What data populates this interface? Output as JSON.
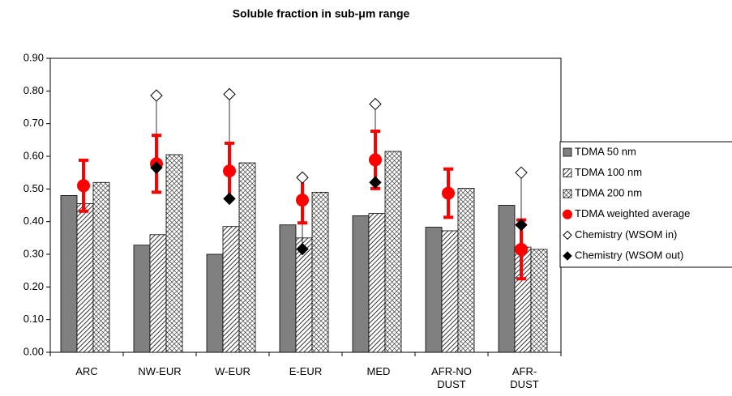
{
  "chart_data": {
    "type": "bar",
    "title": "Soluble fraction in sub-μm range",
    "categories": [
      "ARC",
      "NW-EUR",
      "W-EUR",
      "E-EUR",
      "MED",
      "AFR-NO DUST",
      "AFR-DUST"
    ],
    "series": [
      {
        "name": "TDMA 50 nm",
        "kind": "bar",
        "pattern": "solid",
        "color": "#808080",
        "values": [
          0.48,
          0.328,
          0.3,
          0.39,
          0.418,
          0.383,
          0.45
        ]
      },
      {
        "name": "TDMA 100 nm",
        "kind": "bar",
        "pattern": "diagonal",
        "color": "#000000",
        "values": [
          0.455,
          0.36,
          0.385,
          0.35,
          0.425,
          0.372,
          0.322
        ]
      },
      {
        "name": "TDMA 200 nm",
        "kind": "bar",
        "pattern": "cross",
        "color": "#000000",
        "values": [
          0.52,
          0.605,
          0.58,
          0.49,
          0.615,
          0.502,
          0.315
        ]
      },
      {
        "name": "TDMA weighted average",
        "kind": "point",
        "shape": "circle",
        "color": "#ff0000",
        "values": [
          0.51,
          0.577,
          0.555,
          0.466,
          0.589,
          0.487,
          0.315
        ],
        "errors": [
          0.078,
          0.087,
          0.085,
          0.07,
          0.088,
          0.074,
          0.09
        ]
      },
      {
        "name": "Chemistry (WSOM in)",
        "kind": "point",
        "shape": "diamond-open",
        "color": "#000000",
        "values": [
          null,
          0.786,
          0.79,
          0.535,
          0.76,
          null,
          0.55
        ]
      },
      {
        "name": "Chemistry (WSOM out)",
        "kind": "point",
        "shape": "diamond-filled",
        "color": "#000000",
        "values": [
          null,
          0.565,
          0.47,
          0.316,
          0.52,
          null,
          0.39
        ]
      }
    ],
    "ylim": [
      0,
      0.9
    ],
    "yticks": [
      {
        "value": 0,
        "label": "0.00"
      },
      {
        "value": 0.1,
        "label": "0.10"
      },
      {
        "value": 0.2,
        "label": "0.20"
      },
      {
        "value": 0.3,
        "label": "0.30"
      },
      {
        "value": 0.4,
        "label": "0.40"
      },
      {
        "value": 0.5,
        "label": "0.50"
      },
      {
        "value": 0.6,
        "label": "0.60"
      },
      {
        "value": 0.7,
        "label": "0.70"
      },
      {
        "value": 0.8,
        "label": "0.80"
      },
      {
        "value": 0.9,
        "label": "0.90"
      }
    ],
    "grid": false,
    "legend": "right"
  }
}
